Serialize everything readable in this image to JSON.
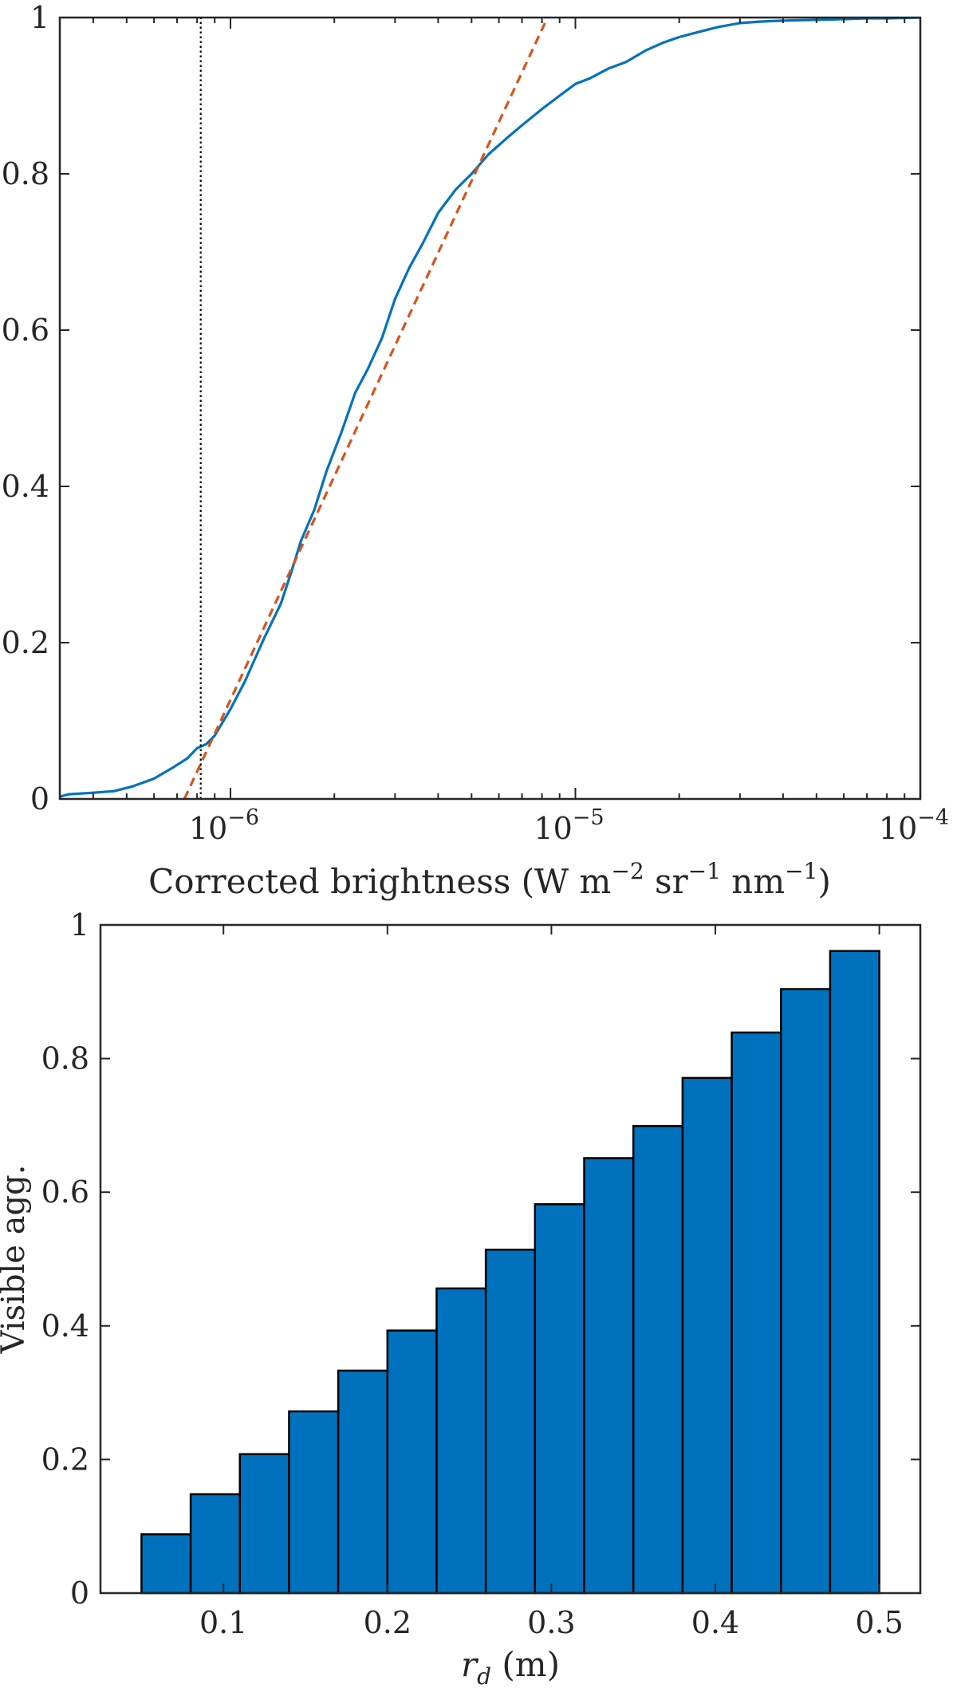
{
  "chart_data": [
    {
      "type": "line",
      "xscale": "log",
      "xlim": [
        3.2e-07,
        0.0001
      ],
      "ylim": [
        0,
        1
      ],
      "xlabel": "Corrected brightness (W m^{-2} sr^{-1} nm^{-1})",
      "xlabel_parts": {
        "main": "Corrected brightness (W m",
        "e1": "−2",
        "sr": " sr",
        "e2": "−1",
        "nm": " nm",
        "e3": "−1",
        "close": ")"
      },
      "ylabel": "",
      "xticks": [
        {
          "value": 1e-06,
          "base": "10",
          "exp": "−6"
        },
        {
          "value": 1e-05,
          "base": "10",
          "exp": "−5"
        },
        {
          "value": 0.0001,
          "base": "10",
          "exp": "−4"
        }
      ],
      "yticks": [
        {
          "value": 0,
          "label": "0"
        },
        {
          "value": 0.2,
          "label": "0.2"
        },
        {
          "value": 0.4,
          "label": "0.4"
        },
        {
          "value": 0.6,
          "label": "0.6"
        },
        {
          "value": 0.8,
          "label": "0.8"
        },
        {
          "value": 1,
          "label": "1"
        }
      ],
      "grid": false,
      "series": [
        {
          "style": "solid",
          "color": "#0072BD",
          "x": [
            3.2e-07,
            3.4e-07,
            4e-07,
            4.6e-07,
            5.2e-07,
            6e-07,
            6.8e-07,
            7.5e-07,
            8e-07,
            8.5e-07,
            9e-07,
            1e-06,
            1.1e-06,
            1.25e-06,
            1.4e-06,
            1.5e-06,
            1.6e-06,
            1.75e-06,
            1.9e-06,
            2.1e-06,
            2.3e-06,
            2.5e-06,
            2.75e-06,
            3e-06,
            3.3e-06,
            3.6e-06,
            4e-06,
            4.5e-06,
            5e-06,
            5.6e-06,
            6.3e-06,
            7e-06,
            8e-06,
            9e-06,
            1e-05,
            1.1e-05,
            1.25e-05,
            1.4e-05,
            1.6e-05,
            1.8e-05,
            2e-05,
            2.3e-05,
            2.6e-05,
            3e-05,
            3.5e-05,
            4e-05,
            5e-05,
            6e-05,
            7e-05,
            8e-05,
            0.0001
          ],
          "y": [
            0.003,
            0.006,
            0.008,
            0.01,
            0.016,
            0.026,
            0.04,
            0.052,
            0.065,
            0.07,
            0.081,
            0.115,
            0.15,
            0.205,
            0.25,
            0.29,
            0.33,
            0.37,
            0.42,
            0.47,
            0.52,
            0.55,
            0.59,
            0.64,
            0.68,
            0.71,
            0.75,
            0.78,
            0.8,
            0.825,
            0.845,
            0.862,
            0.883,
            0.9,
            0.915,
            0.922,
            0.935,
            0.943,
            0.958,
            0.968,
            0.975,
            0.982,
            0.988,
            0.993,
            0.995,
            0.996,
            0.997,
            0.998,
            0.999,
            0.999,
            1.0
          ]
        },
        {
          "style": "dashed",
          "color": "#D95319",
          "x": [
            7.35e-07,
            8.3e-06
          ],
          "y": [
            0,
            1
          ]
        },
        {
          "style": "dotted",
          "color": "#000000",
          "x": [
            8.2e-07,
            8.2e-07
          ],
          "y": [
            0,
            1
          ]
        }
      ]
    },
    {
      "type": "bar",
      "xlim": [
        0.025,
        0.525
      ],
      "ylim": [
        0,
        1
      ],
      "xlabel_parts": {
        "var": "r",
        "sub": "d",
        "unit": " (m)"
      },
      "xlabel": "r_d (m)",
      "ylabel": "Visible agg.",
      "bar_width": 0.03,
      "bar_color": "#0072BD",
      "x": [
        0.065,
        0.095,
        0.125,
        0.155,
        0.185,
        0.215,
        0.245,
        0.275,
        0.305,
        0.335,
        0.365,
        0.395,
        0.425,
        0.455,
        0.485
      ],
      "values": [
        0.088,
        0.148,
        0.208,
        0.272,
        0.333,
        0.393,
        0.456,
        0.514,
        0.582,
        0.651,
        0.699,
        0.771,
        0.839,
        0.904,
        0.961
      ],
      "xticks": [
        {
          "value": 0.1,
          "label": "0.1"
        },
        {
          "value": 0.2,
          "label": "0.2"
        },
        {
          "value": 0.3,
          "label": "0.3"
        },
        {
          "value": 0.4,
          "label": "0.4"
        },
        {
          "value": 0.5,
          "label": "0.5"
        }
      ],
      "yticks": [
        {
          "value": 0,
          "label": "0"
        },
        {
          "value": 0.2,
          "label": "0.2"
        },
        {
          "value": 0.4,
          "label": "0.4"
        },
        {
          "value": 0.6,
          "label": "0.6"
        },
        {
          "value": 0.8,
          "label": "0.8"
        },
        {
          "value": 1,
          "label": "1"
        }
      ],
      "grid": false
    }
  ]
}
